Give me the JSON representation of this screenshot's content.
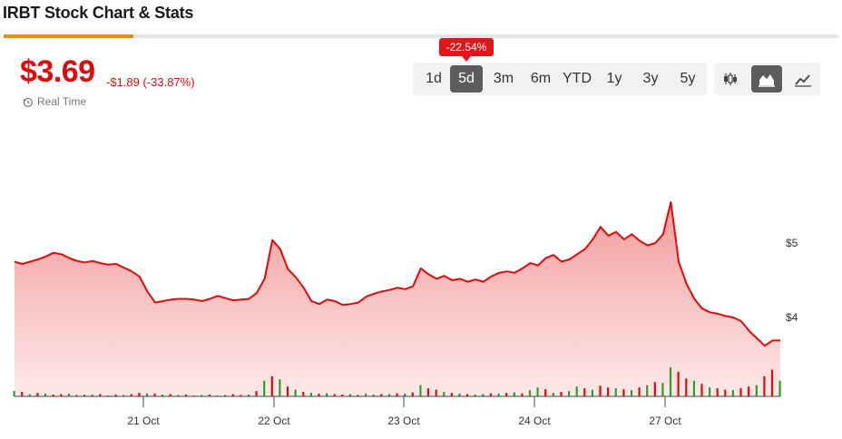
{
  "header": {
    "title": "IRBT Stock Chart & Stats",
    "progress": 0.155
  },
  "quote": {
    "price": "$3.69",
    "change": "-$1.89 (-33.87%)",
    "realtime_label": "Real Time"
  },
  "range_selector": {
    "options": [
      "1d",
      "5d",
      "3m",
      "6m",
      "YTD",
      "1y",
      "3y",
      "5y"
    ],
    "selected": "5d",
    "change_badge": "-22.54%"
  },
  "chart_type_selector": {
    "options": [
      "candlestick-icon",
      "area-chart-icon",
      "line-chart-icon"
    ],
    "selected": "area-chart-icon"
  },
  "colors": {
    "accent": "#f08a0e",
    "negative": "#dd0b0b",
    "line": "#dd0b0b",
    "area_top": "#f3a1a1",
    "volume_up": "#2e9d2e",
    "volume_down": "#dd0b0b"
  },
  "chart_data": {
    "type": "area",
    "x_tick_labels": [
      "21 Oct",
      "22 Oct",
      "23 Oct",
      "24 Oct",
      "27 Oct"
    ],
    "y_tick_labels": [
      "$5",
      "$4"
    ],
    "ylim": [
      3.0,
      6.0
    ],
    "grid": false,
    "series": [
      {
        "values": [
          4.75,
          4.72,
          4.75,
          4.78,
          4.82,
          4.87,
          4.85,
          4.8,
          4.76,
          4.74,
          4.76,
          4.73,
          4.71,
          4.72,
          4.67,
          4.62,
          4.55,
          4.35,
          4.2,
          4.22,
          4.24,
          4.25,
          4.25,
          4.24,
          4.22,
          4.25,
          4.29,
          4.26,
          4.23,
          4.24,
          4.25,
          4.33,
          4.52,
          5.04,
          4.92,
          4.65,
          4.54,
          4.4,
          4.22,
          4.18,
          4.24,
          4.22,
          4.17,
          4.18,
          4.2,
          4.28,
          4.32,
          4.35,
          4.37,
          4.4,
          4.38,
          4.42,
          4.66,
          4.58,
          4.52,
          4.56,
          4.5,
          4.52,
          4.48,
          4.51,
          4.48,
          4.55,
          4.6,
          4.62,
          4.6,
          4.66,
          4.73,
          4.7,
          4.8,
          4.84,
          4.75,
          4.78,
          4.85,
          4.92,
          5.05,
          5.22,
          5.1,
          5.15,
          5.05,
          5.12,
          5.03,
          4.97,
          5.0,
          5.12,
          5.55,
          4.75,
          4.45,
          4.25,
          4.12,
          4.07,
          4.05,
          4.02,
          4.0,
          3.95,
          3.82,
          3.72,
          3.62,
          3.69,
          3.69
        ]
      }
    ],
    "volume": {
      "values": [
        0.12,
        0.1,
        0.05,
        0.08,
        0.06,
        0.04,
        0.05,
        0.06,
        0.03,
        0.04,
        0.03,
        0.05,
        0.02,
        0.04,
        0.03,
        0.05,
        0.08,
        0.07,
        0.06,
        0.04,
        0.05,
        0.03,
        0.04,
        0.02,
        0.03,
        0.04,
        0.02,
        0.03,
        0.05,
        0.03,
        0.04,
        0.12,
        0.35,
        0.45,
        0.38,
        0.22,
        0.15,
        0.1,
        0.08,
        0.06,
        0.07,
        0.05,
        0.04,
        0.05,
        0.03,
        0.06,
        0.04,
        0.05,
        0.05,
        0.07,
        0.06,
        0.09,
        0.25,
        0.18,
        0.15,
        0.1,
        0.08,
        0.06,
        0.05,
        0.04,
        0.05,
        0.07,
        0.06,
        0.08,
        0.09,
        0.07,
        0.14,
        0.2,
        0.16,
        0.08,
        0.1,
        0.12,
        0.22,
        0.18,
        0.15,
        0.24,
        0.2,
        0.18,
        0.16,
        0.14,
        0.2,
        0.25,
        0.32,
        0.3,
        0.65,
        0.55,
        0.4,
        0.35,
        0.28,
        0.2,
        0.18,
        0.15,
        0.14,
        0.18,
        0.22,
        0.25,
        0.45,
        0.6,
        0.35
      ],
      "up": [
        1,
        0,
        1,
        0,
        1,
        0,
        0,
        1,
        0,
        1,
        0,
        0,
        1,
        0,
        1,
        0,
        0,
        1,
        0,
        1,
        0,
        1,
        0,
        0,
        1,
        0,
        1,
        1,
        0,
        0,
        1,
        0,
        1,
        0,
        1,
        0,
        1,
        0,
        1,
        0,
        1,
        0,
        0,
        1,
        0,
        1,
        1,
        0,
        1,
        0,
        1,
        0,
        1,
        0,
        0,
        1,
        0,
        1,
        0,
        1,
        1,
        0,
        1,
        0,
        1,
        0,
        1,
        1,
        0,
        1,
        0,
        1,
        1,
        0,
        1,
        0,
        0,
        1,
        0,
        1,
        0,
        1,
        0,
        1,
        1,
        0,
        0,
        1,
        0,
        1,
        0,
        0,
        1,
        0,
        0,
        1,
        0,
        0,
        1
      ]
    }
  }
}
